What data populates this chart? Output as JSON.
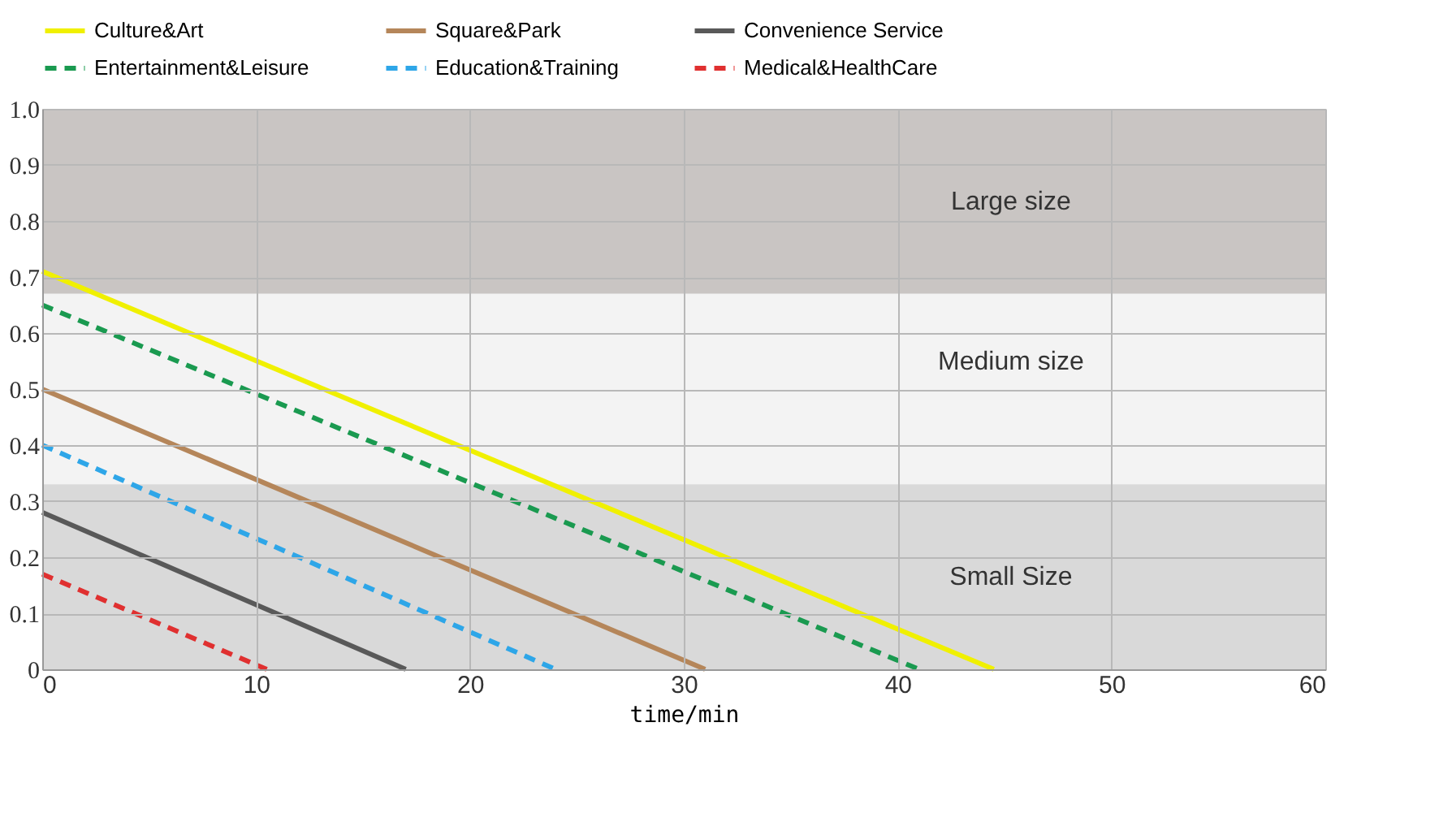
{
  "chart_data": {
    "type": "line",
    "xlabel": "time/min",
    "xlim": [
      0,
      60
    ],
    "xticks": [
      0,
      10,
      20,
      30,
      40,
      50,
      60
    ],
    "ylim": [
      0,
      1
    ],
    "yticks": [
      0,
      0.1,
      0.2,
      0.3,
      0.4,
      0.5,
      0.6,
      0.7,
      0.8,
      0.9,
      {
        "value": 1,
        "label": "1.0"
      }
    ],
    "grid": true,
    "legend": "top",
    "marker": "none",
    "series": [
      {
        "name": "Culture&Art",
        "color": "#f0f000",
        "line_style": "solid",
        "x": [
          0,
          44.5
        ],
        "values": [
          0.71,
          0
        ]
      },
      {
        "name": "Square&Park",
        "color": "#b5865a",
        "line_style": "solid",
        "x": [
          0,
          31
        ],
        "values": [
          0.5,
          0
        ]
      },
      {
        "name": "Convenience Service",
        "color": "#595959",
        "line_style": "solid",
        "x": [
          0,
          17
        ],
        "values": [
          0.28,
          0
        ]
      },
      {
        "name": "Entertainment&Leisure",
        "color": "#1a9a50",
        "line_style": "dashed",
        "x": [
          0,
          41
        ],
        "values": [
          0.65,
          0
        ]
      },
      {
        "name": "Education&Training",
        "color": "#2ea6e8",
        "line_style": "dashed",
        "x": [
          0,
          24
        ],
        "values": [
          0.4,
          0
        ]
      },
      {
        "name": "Medical&HealthCare",
        "color": "#e03030",
        "line_style": "dashed",
        "x": [
          0,
          10.5
        ],
        "values": [
          0.17,
          0
        ]
      }
    ],
    "bands": [
      {
        "axis": "y",
        "from": 0.67,
        "to": 1.0,
        "label": "Large size",
        "color": "#c9c5c3"
      },
      {
        "axis": "y",
        "from": 0.33,
        "to": 0.67,
        "label": "Medium size",
        "color": "#f3f3f3"
      },
      {
        "axis": "y",
        "from": 0,
        "to": 0.33,
        "label": "Small Size",
        "color": "#d9d9d9"
      }
    ]
  }
}
